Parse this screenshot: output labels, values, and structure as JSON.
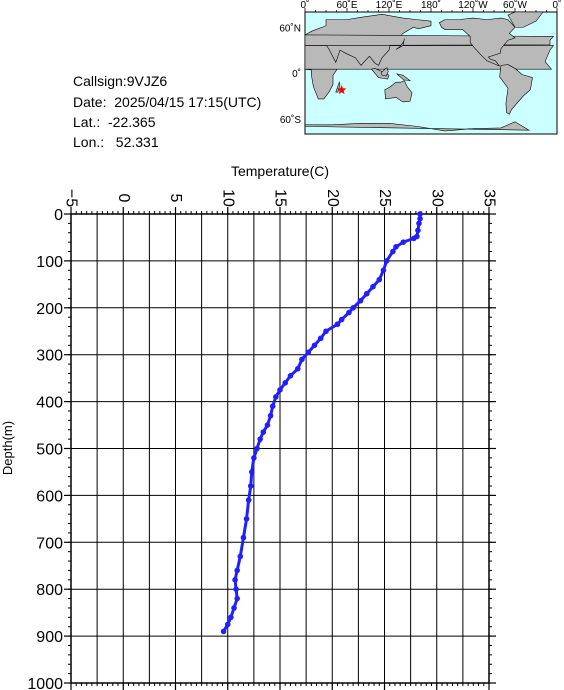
{
  "info": {
    "callsign": "Callsign:9VJZ6",
    "date": "Date:  2025/04/15 17:15(UTC)",
    "lat": "Lat.:  -22.365",
    "lon": "Lon.:   52.331"
  },
  "map": {
    "top_labels": [
      "0˚",
      "60˚E",
      "120˚E",
      "180˚",
      "120˚W",
      "60˚W",
      "0˚"
    ],
    "left_labels": [
      "60˚N",
      "0˚",
      "60˚S"
    ],
    "ocean_color": "#ccffff",
    "land_color": "#b9b9b9",
    "marker_color": "#ff0000",
    "marker_lat": -22.365,
    "marker_lon": 52.331
  },
  "chart_data": {
    "type": "line",
    "xlabel": "Temperature(C)",
    "ylabel": "Depth(m)",
    "xlim": [
      -5,
      35
    ],
    "ylim": [
      1000,
      0
    ],
    "x_ticks": [
      -5,
      0,
      5,
      10,
      15,
      20,
      25,
      30,
      35
    ],
    "y_ticks": [
      0,
      100,
      200,
      300,
      400,
      500,
      600,
      700,
      800,
      900,
      1000
    ],
    "grid": true,
    "series_color": "#2020ff",
    "series": [
      {
        "x": [
          28.4,
          28.4,
          28.3,
          28.2,
          28.1,
          27.8,
          26.8,
          26.1,
          25.8,
          25.2,
          24.9,
          24.5,
          23.9,
          23.3,
          22.7,
          22.0,
          21.6,
          20.9,
          20.5,
          19.4,
          18.9,
          18.3,
          17.7,
          17.1,
          16.7,
          16.0,
          15.5,
          15.0,
          14.6,
          14.3,
          14.1,
          13.8,
          13.4,
          13.1,
          12.8,
          12.5,
          12.3,
          12.2,
          12.0,
          11.8,
          11.5,
          11.2,
          10.9,
          10.7,
          10.8,
          10.9,
          10.6,
          10.3,
          10.0,
          9.6
        ],
        "y": [
          0,
          10,
          20,
          35,
          48,
          52,
          60,
          70,
          80,
          100,
          120,
          140,
          155,
          170,
          185,
          200,
          210,
          225,
          235,
          250,
          265,
          280,
          295,
          310,
          330,
          345,
          360,
          375,
          390,
          410,
          430,
          450,
          465,
          480,
          500,
          520,
          550,
          580,
          610,
          650,
          690,
          730,
          760,
          780,
          800,
          820,
          840,
          860,
          875,
          890
        ]
      }
    ]
  }
}
